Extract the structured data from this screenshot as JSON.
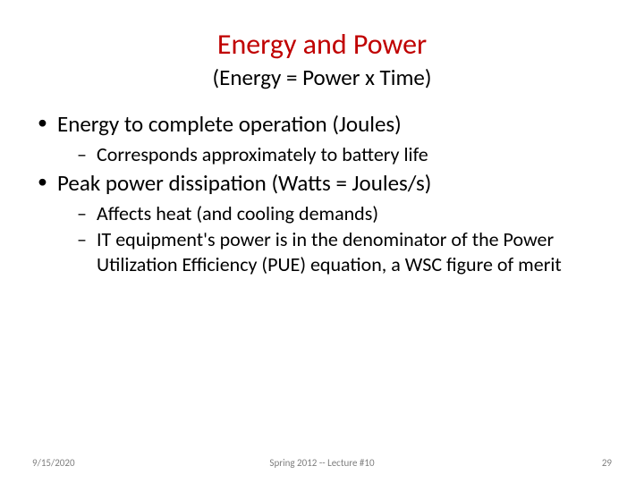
{
  "colors": {
    "title": "#c00000",
    "body_text": "#000000",
    "footer_text": "#7f7f7f",
    "background": "#ffffff"
  },
  "typography": {
    "title_fontsize": 32,
    "subtitle_fontsize": 25,
    "bullet1_fontsize": 25,
    "bullet2_fontsize": 22,
    "footer_fontsize": 11,
    "font_family": "Calibri"
  },
  "title": "Energy and Power",
  "subtitle": "(Energy = Power x Time)",
  "bullets": [
    {
      "text": "Energy to complete operation (Joules)",
      "sub": [
        "Corresponds approximately to battery life"
      ]
    },
    {
      "text": "Peak power dissipation (Watts = Joules/s)",
      "sub": [
        "Affects heat (and cooling demands)",
        "IT equipment's power is in the denominator of the Power Utilization Efficiency (PUE) equation, a WSC figure of merit"
      ]
    }
  ],
  "footer": {
    "date": "9/15/2020",
    "center": "Spring 2012 -- Lecture #10",
    "page": "29"
  }
}
